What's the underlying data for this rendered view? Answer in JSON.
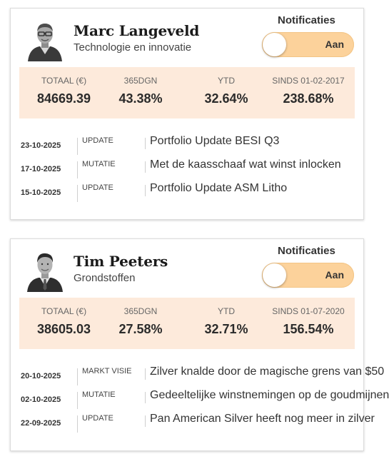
{
  "portfolios": [
    {
      "name": "Marc Langeveld",
      "subtitle": "Technologie en innovatie",
      "avatar_icon": "person-photo-icon",
      "notifications_label": "Notificaties",
      "toggle_state": "Aan",
      "stats": [
        {
          "label": "TOTAAL (€)",
          "value": "84669.39"
        },
        {
          "label": "365DGN",
          "value": "43.38%"
        },
        {
          "label": "YTD",
          "value": "32.64%"
        },
        {
          "label": "SINDS 01-02-2017",
          "value": "238.68%"
        }
      ],
      "news": [
        {
          "date": "23-10-2025",
          "type": "UPDATE",
          "title": "Portfolio Update BESI Q3"
        },
        {
          "date": "17-10-2025",
          "type": "MUTATIE",
          "title": "Met de kaasschaaf wat winst inlocken"
        },
        {
          "date": "15-10-2025",
          "type": "UPDATE",
          "title": "Portfolio Update ASM Litho"
        }
      ]
    },
    {
      "name": "Tim Peeters",
      "subtitle": "Grondstoffen",
      "avatar_icon": "person-photo-icon",
      "notifications_label": "Notificaties",
      "toggle_state": "Aan",
      "stats": [
        {
          "label": "TOTAAL (€)",
          "value": "38605.03"
        },
        {
          "label": "365DGN",
          "value": "27.58%"
        },
        {
          "label": "YTD",
          "value": "32.71%"
        },
        {
          "label": "SINDS 01-07-2020",
          "value": "156.54%"
        }
      ],
      "news": [
        {
          "date": "20-10-2025",
          "type": "MARKT VISIE",
          "title": "Zilver knalde door de magische grens van $50"
        },
        {
          "date": "02-10-2025",
          "type": "MUTATIE",
          "title": "Gedeeltelijke winstnemingen op de goudmijnen"
        },
        {
          "date": "22-09-2025",
          "type": "UPDATE",
          "title": "Pan American Silver heeft nog meer in zilver"
        }
      ]
    }
  ],
  "colors": {
    "stats_bg": "#fdeadb",
    "toggle_bg": "#fcd29b"
  }
}
